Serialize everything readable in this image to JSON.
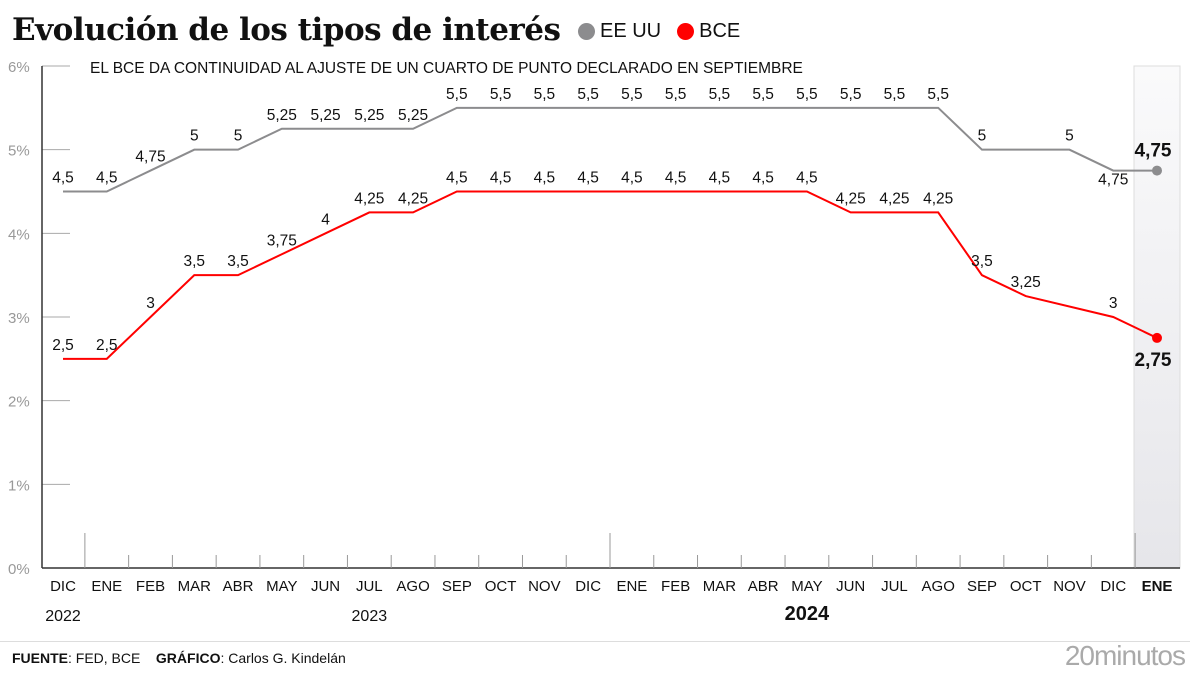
{
  "title": "Evolución de los tipos de interés",
  "footer": {
    "source_label": "FUENTE",
    "source": "FED, BCE",
    "graphic_label": "GRÁFICO",
    "graphic": "Carlos G. Kindelán"
  },
  "logo": "20minutos",
  "chart_data": {
    "type": "line",
    "subtitle": "EL BCE DA CONTINUIDAD AL AJUSTE DE UN CUARTO DE PUNTO DECLARADO EN SEPTIEMBRE",
    "categories": [
      "DIC",
      "ENE",
      "FEB",
      "MAR",
      "ABR",
      "MAY",
      "JUN",
      "JUL",
      "AGO",
      "SEP",
      "OCT",
      "NOV",
      "DIC",
      "ENE",
      "FEB",
      "MAR",
      "ABR",
      "MAY",
      "JUN",
      "JUL",
      "AGO",
      "SEP",
      "OCT",
      "NOV",
      "DIC",
      "ENE"
    ],
    "year_labels": [
      {
        "index": 0,
        "label": "2022",
        "bold": false
      },
      {
        "index": 7,
        "label": "2023",
        "bold": false
      },
      {
        "index": 17,
        "label": "2024",
        "bold": true
      }
    ],
    "yticks": [
      "0%",
      "1%",
      "2%",
      "3%",
      "4%",
      "5%",
      "6%"
    ],
    "ylim": [
      0,
      6
    ],
    "highlight_last": true,
    "series": [
      {
        "name": "EE UU",
        "color": "#8c8c8e",
        "values": [
          4.5,
          4.5,
          4.75,
          5,
          5,
          5.25,
          5.25,
          5.25,
          5.25,
          5.5,
          5.5,
          5.5,
          5.5,
          5.5,
          5.5,
          5.5,
          5.5,
          5.5,
          5.5,
          5.5,
          5.5,
          5,
          null,
          5,
          4.75,
          4.75
        ],
        "labels": [
          "4,5",
          "4,5",
          "4,75",
          "5",
          "5",
          "5,25",
          "5,25",
          "5,25",
          "5,25",
          "5,5",
          "5,5",
          "5,5",
          "5,5",
          "5,5",
          "5,5",
          "5,5",
          "5,5",
          "5,5",
          "5,5",
          "5,5",
          "5,5",
          "5",
          null,
          "5",
          "4,75",
          "4,75"
        ]
      },
      {
        "name": "BCE",
        "color": "#ff0000",
        "values": [
          2.5,
          2.5,
          3,
          3.5,
          3.5,
          3.75,
          4,
          4.25,
          4.25,
          4.5,
          4.5,
          4.5,
          4.5,
          4.5,
          4.5,
          4.5,
          4.5,
          4.5,
          4.25,
          4.25,
          4.25,
          3.5,
          3.25,
          null,
          3,
          2.75
        ],
        "labels": [
          "2,5",
          "2,5",
          "3",
          "3,5",
          "3,5",
          "3,75",
          "4",
          "4,25",
          "4,25",
          "4,5",
          "4,5",
          "4,5",
          "4,5",
          "4,5",
          "4,5",
          "4,5",
          "4,5",
          "4,5",
          "4,25",
          "4,25",
          "4,25",
          "3,5",
          "3,25",
          null,
          "3",
          "2,75"
        ]
      }
    ]
  }
}
